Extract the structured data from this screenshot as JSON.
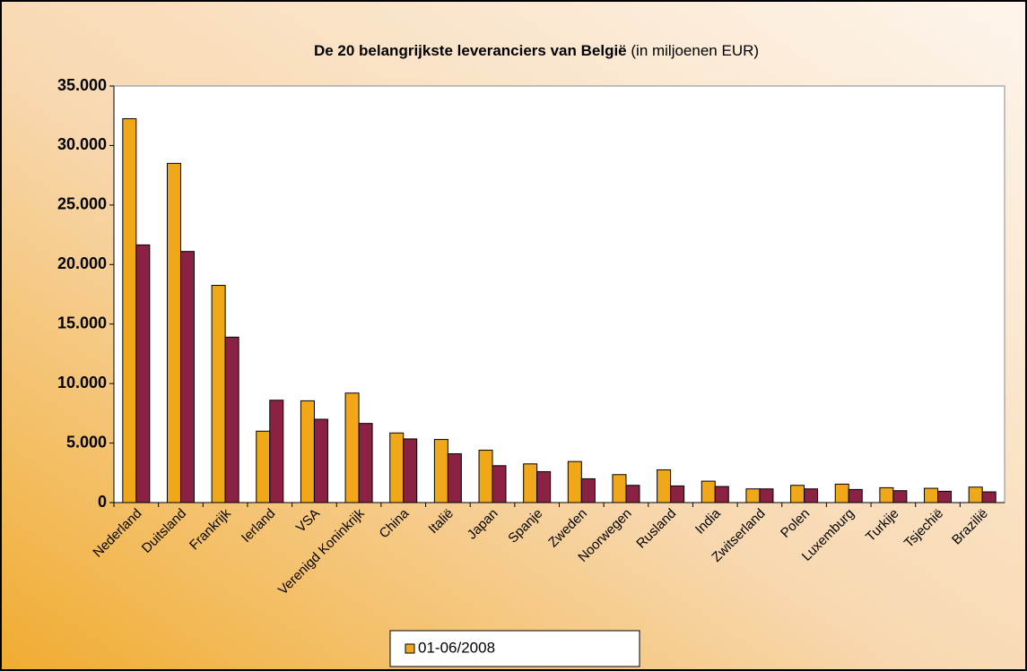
{
  "chart_data": {
    "type": "bar",
    "title": "De 20 belangrijkste leveranciers van België",
    "subtitle": "(in miljoenen EUR)",
    "categories": [
      "Nederland",
      "Duitsland",
      "Frankrijk",
      "Ierland",
      "VSA",
      "Verenigd Koninkrijk",
      "China",
      "Italië",
      "Japan",
      "Spanje",
      "Zweden",
      "Noorwegen",
      "Rusland",
      "India",
      "Zwitserland",
      "Polen",
      "Luxemburg",
      "Turkije",
      "Tsjechië",
      "Brazilië"
    ],
    "series": [
      {
        "name": "01-06/2008",
        "color": "#f0a818",
        "values": [
          32250,
          28500,
          18250,
          6000,
          8550,
          9200,
          5850,
          5300,
          4400,
          3250,
          3450,
          2350,
          2750,
          1800,
          1150,
          1450,
          1550,
          1250,
          1200,
          1300
        ]
      },
      {
        "color": "#8b2143",
        "values": [
          21650,
          21100,
          13900,
          8600,
          7000,
          6650,
          5350,
          4100,
          3100,
          2600,
          2000,
          1450,
          1400,
          1350,
          1150,
          1150,
          1100,
          1000,
          950,
          900
        ]
      }
    ],
    "ylim": [
      0,
      35000
    ],
    "yticks": [
      0,
      {
        "value": 5000,
        "label": "5.000"
      },
      {
        "value": 10000,
        "label": "10.000"
      },
      {
        "value": 15000,
        "label": "15.000"
      },
      {
        "value": 20000,
        "label": "20.000"
      },
      {
        "value": 25000,
        "label": "25.000"
      },
      {
        "value": 30000,
        "label": "30.000"
      },
      {
        "value": 35000,
        "label": "35.000"
      }
    ],
    "grid": false
  }
}
